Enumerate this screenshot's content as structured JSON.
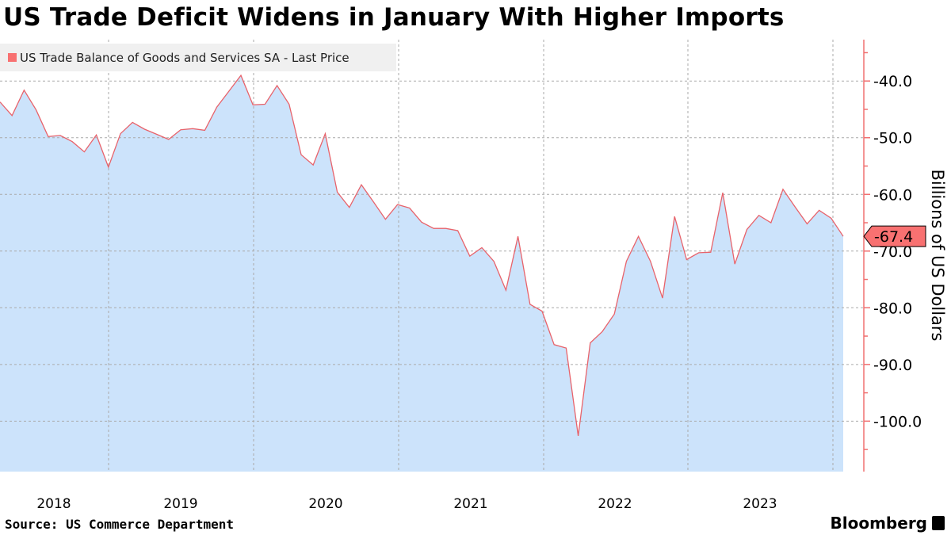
{
  "title": "US Trade Deficit Widens in January With Higher Imports",
  "source": "Source: US Commerce Department",
  "brand": "Bloomberg",
  "colors": {
    "line": "#e8636b",
    "fill": "#cce3fb",
    "axis": "#f07070",
    "badge": "#f87171",
    "grid": "#aaaaaa"
  },
  "chart_data": {
    "type": "area",
    "title": "US Trade Deficit Widens in January With Higher Imports",
    "legend": [
      "US Trade Balance of Goods and Services SA - Last Price"
    ],
    "legend_placement": "top-left",
    "ylabel": "Billions of US Dollars",
    "xlabel": "",
    "ylim": [
      -108.9,
      -32.7
    ],
    "yticks": [
      -40,
      -50,
      -60,
      -70,
      -80,
      -90,
      -100
    ],
    "ytick_labels": [
      "-40.0",
      "-50.0",
      "-60.0",
      "-70.0",
      "-80.0",
      "-90.0",
      "-100.0"
    ],
    "xtick_labels": [
      "2018",
      "2019",
      "2020",
      "2021",
      "2022",
      "2023"
    ],
    "grid": true,
    "start": "2018-03",
    "frequency": "monthly",
    "last_value_label": "-67.4",
    "series": [
      {
        "name": "US Trade Balance of Goods and Services SA - Last Price",
        "values": [
          -43.7,
          -46.1,
          -41.6,
          -45.1,
          -49.8,
          -49.6,
          -50.7,
          -52.5,
          -49.5,
          -55.2,
          -49.3,
          -47.3,
          -48.5,
          -49.4,
          -50.3,
          -48.6,
          -48.4,
          -48.7,
          -44.6,
          -41.8,
          -39.0,
          -44.2,
          -44.1,
          -40.8,
          -44.1,
          -53.0,
          -54.8,
          -49.3,
          -59.6,
          -62.3,
          -58.3,
          -61.3,
          -64.4,
          -61.8,
          -62.4,
          -64.9,
          -66.0,
          -66.0,
          -66.4,
          -70.9,
          -69.4,
          -71.8,
          -76.9,
          -67.4,
          -79.4,
          -80.6,
          -86.5,
          -87.1,
          -102.6,
          -86.2,
          -84.2,
          -81.1,
          -71.8,
          -67.4,
          -71.8,
          -78.3,
          -63.9,
          -71.5,
          -70.3,
          -70.2,
          -59.7,
          -72.3,
          -66.2,
          -63.7,
          -65.0,
          -59.1,
          -62.2,
          -65.2,
          -62.8,
          -64.2,
          -67.4
        ]
      }
    ]
  }
}
